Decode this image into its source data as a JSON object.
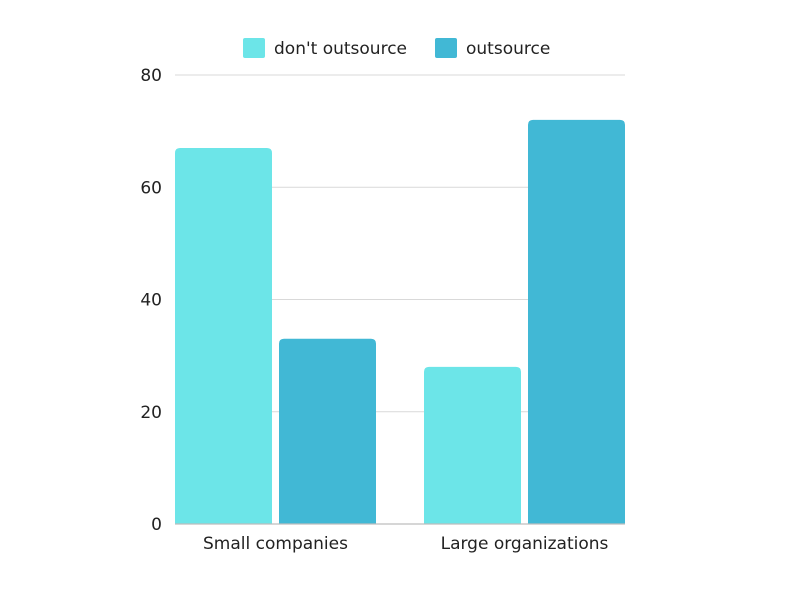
{
  "chart_data": {
    "type": "bar",
    "categories": [
      "Small companies",
      "Large organizations"
    ],
    "series": [
      {
        "name": "don't outsource",
        "values": [
          67,
          28
        ],
        "color": "#6ce5e8"
      },
      {
        "name": "outsource",
        "values": [
          33,
          72
        ],
        "color": "#41b8d5"
      }
    ],
    "title": "",
    "xlabel": "",
    "ylabel": "",
    "ylim": [
      0,
      80
    ],
    "yticks": [
      0,
      20,
      40,
      60,
      80
    ],
    "grid": true,
    "legend_position": "top-center"
  }
}
